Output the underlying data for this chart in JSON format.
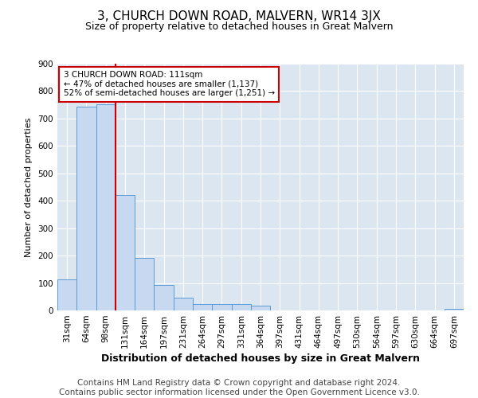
{
  "title": "3, CHURCH DOWN ROAD, MALVERN, WR14 3JX",
  "subtitle": "Size of property relative to detached houses in Great Malvern",
  "xlabel": "Distribution of detached houses by size in Great Malvern",
  "ylabel": "Number of detached properties",
  "bar_labels": [
    "31sqm",
    "64sqm",
    "98sqm",
    "131sqm",
    "164sqm",
    "197sqm",
    "231sqm",
    "264sqm",
    "297sqm",
    "331sqm",
    "364sqm",
    "397sqm",
    "431sqm",
    "464sqm",
    "497sqm",
    "530sqm",
    "564sqm",
    "597sqm",
    "630sqm",
    "664sqm",
    "697sqm"
  ],
  "bar_values": [
    113,
    743,
    752,
    420,
    192,
    93,
    46,
    22,
    22,
    22,
    18,
    0,
    0,
    0,
    0,
    0,
    0,
    0,
    0,
    0,
    5
  ],
  "bar_color": "#c6d9f0",
  "bar_edge_color": "#5b9bd5",
  "red_line_x": 2.5,
  "annotation_title": "3 CHURCH DOWN ROAD: 111sqm",
  "annotation_line1": "← 47% of detached houses are smaller (1,137)",
  "annotation_line2": "52% of semi-detached houses are larger (1,251) →",
  "annotation_box_color": "#ffffff",
  "annotation_box_edge": "#cc0000",
  "red_line_color": "#cc0000",
  "ylim": [
    0,
    900
  ],
  "yticks": [
    0,
    100,
    200,
    300,
    400,
    500,
    600,
    700,
    800,
    900
  ],
  "footnote1": "Contains HM Land Registry data © Crown copyright and database right 2024.",
  "footnote2": "Contains public sector information licensed under the Open Government Licence v3.0.",
  "plot_bg_color": "#dce6f1",
  "fig_bg_color": "#ffffff",
  "title_fontsize": 11,
  "subtitle_fontsize": 9,
  "xlabel_fontsize": 9,
  "ylabel_fontsize": 8,
  "tick_fontsize": 7.5,
  "footnote_fontsize": 7.5
}
